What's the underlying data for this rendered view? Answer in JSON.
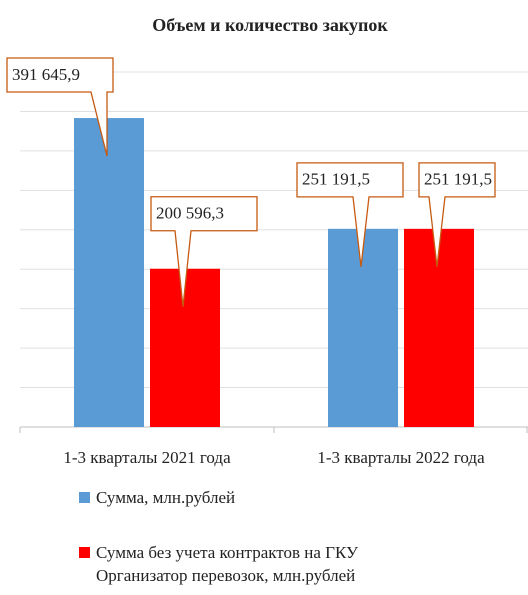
{
  "chart_data": {
    "type": "bar",
    "title": "Объем и количество закупок",
    "categories": [
      "1-3 кварталы 2021 года",
      "1-3 кварталы 2022 года"
    ],
    "series": [
      {
        "name": "Сумма, млн.рублей",
        "color": "#5b9bd5",
        "values": [
          391645.9,
          251191.5
        ],
        "value_labels": [
          "391 645,9",
          "251 191,5"
        ]
      },
      {
        "name": "Сумма без учета контрактов на ГКУ Организатор перевозок, млн.рублей",
        "color": "#ff0000",
        "values": [
          200596.3,
          251191.5
        ],
        "value_labels": [
          "200 596,3",
          "251 191,5"
        ]
      }
    ],
    "ylim": [
      0,
      450000
    ],
    "yticks": [
      0,
      50000,
      100000,
      150000,
      200000,
      250000,
      300000,
      350000,
      400000,
      450000
    ],
    "grid": true
  }
}
